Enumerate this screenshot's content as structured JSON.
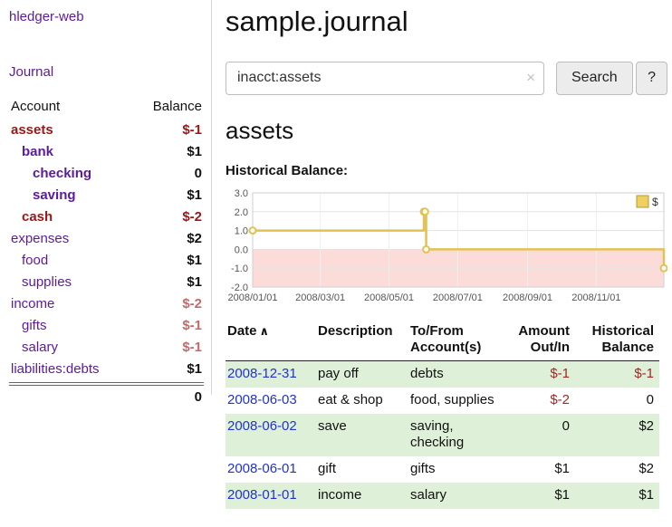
{
  "app": {
    "brand": "hledger-web"
  },
  "sidebar": {
    "journal_label": "Journal",
    "header": {
      "account": "Account",
      "balance": "Balance"
    },
    "accounts": [
      {
        "label": "assets",
        "balance": "$-1"
      },
      {
        "label": "bank",
        "balance": "$1"
      },
      {
        "label": "checking",
        "balance": "0"
      },
      {
        "label": "saving",
        "balance": "$1"
      },
      {
        "label": "cash",
        "balance": "$-2"
      },
      {
        "label": "expenses",
        "balance": "$2"
      },
      {
        "label": "food",
        "balance": "$1"
      },
      {
        "label": "supplies",
        "balance": "$1"
      },
      {
        "label": "income",
        "balance": "$-2"
      },
      {
        "label": "gifts",
        "balance": "$-1"
      },
      {
        "label": "salary",
        "balance": "$-1"
      },
      {
        "label": "liabilities:debts",
        "balance": "$1"
      }
    ],
    "total": "0"
  },
  "header": {
    "title": "sample.journal"
  },
  "search": {
    "value": "inacct:assets",
    "clear_icon": "×",
    "button_label": "Search",
    "help_label": "?"
  },
  "account_page": {
    "title": "assets",
    "chart_title": "Historical Balance:"
  },
  "chart_data": {
    "type": "line",
    "step": true,
    "title": "Historical Balance:",
    "series": [
      {
        "name": "$",
        "points": [
          [
            "2008-01-01",
            1
          ],
          [
            "2008-06-01",
            2
          ],
          [
            "2008-06-02",
            2
          ],
          [
            "2008-06-03",
            0
          ],
          [
            "2008-12-31",
            -1
          ]
        ]
      }
    ],
    "x_range": [
      "2008-01-01",
      "2008-12-31"
    ],
    "ylim": [
      -2,
      3
    ],
    "y_ticks": [
      3.0,
      2.0,
      1.0,
      0.0,
      -1.0,
      -2.0
    ],
    "x_tick_labels": [
      "2008/01/01",
      "2008/03/01",
      "2008/05/01",
      "2008/07/01",
      "2008/09/01",
      "2008/11/01"
    ],
    "line_color": "#e2c157",
    "negative_region_color": "#fbdcd9",
    "legend_position": "top-right",
    "grid": true
  },
  "register": {
    "sort_icon": "∧",
    "headers": {
      "date": "Date",
      "description": "Description",
      "accounts": "To/From Account(s)",
      "amount": "Amount Out/In",
      "balance": "Historical Balance"
    },
    "rows": [
      {
        "date": "2008-12-31",
        "description": "pay off",
        "accounts": "debts",
        "amount": "$-1",
        "balance": "$-1"
      },
      {
        "date": "2008-06-03",
        "description": "eat & shop",
        "accounts": "food, supplies",
        "amount": "$-2",
        "balance": "0"
      },
      {
        "date": "2008-06-02",
        "description": "save",
        "accounts": "saving, checking",
        "amount": "0",
        "balance": "$2"
      },
      {
        "date": "2008-06-01",
        "description": "gift",
        "accounts": "gifts",
        "amount": "$1",
        "balance": "$2"
      },
      {
        "date": "2008-01-01",
        "description": "income",
        "accounts": "salary",
        "amount": "$1",
        "balance": "$1"
      }
    ]
  }
}
